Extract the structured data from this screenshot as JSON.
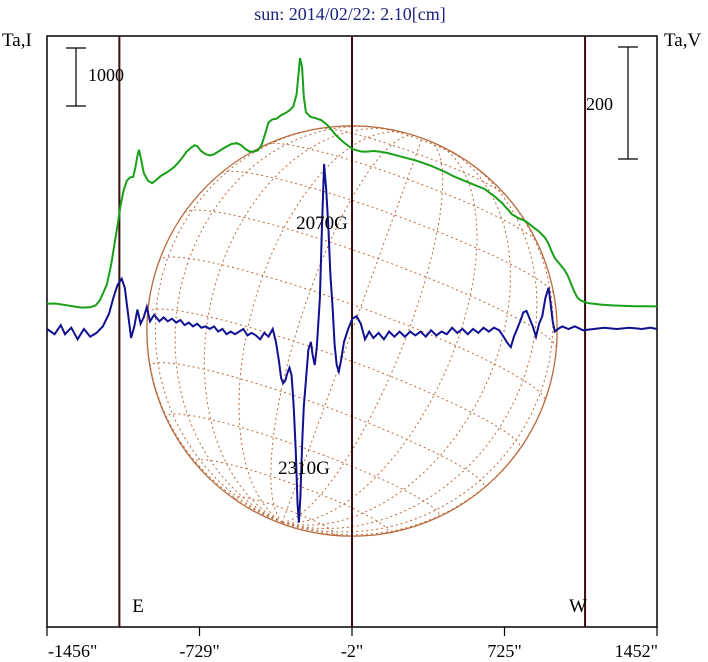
{
  "chart_data": {
    "type": "line",
    "title": "sun: 2014/02/22: 2.10[cm]",
    "ylabel_left": "Ta,I",
    "ylabel_right": "Ta,V",
    "scale_left_label": "1000",
    "scale_right_label": "200",
    "x_ticks": [
      "-1456\"",
      "-729\"",
      "-2\"",
      "725\"",
      "1452\""
    ],
    "x_tick_values": [
      -1456,
      -729,
      -2,
      725,
      1452
    ],
    "xlim": [
      -1456,
      1452
    ],
    "limb_labels": {
      "east": "E",
      "west": "W"
    },
    "vertical_markers": [
      -1111,
      -2,
      1109
    ],
    "annotations": [
      {
        "text": "2070G",
        "x": -2,
        "series": "V"
      },
      {
        "text": "2310G",
        "x": -222,
        "series": "V"
      }
    ],
    "series": [
      {
        "id": "I",
        "color": "#18a018",
        "points": [
          [
            -1456,
            1.95
          ],
          [
            -1415,
            1.98
          ],
          [
            -1380,
            1.88
          ],
          [
            -1330,
            1.75
          ],
          [
            -1290,
            1.66
          ],
          [
            -1250,
            1.68
          ],
          [
            -1225,
            1.82
          ],
          [
            -1205,
            2.2
          ],
          [
            -1185,
            2.9
          ],
          [
            -1170,
            3.5
          ],
          [
            -1150,
            5.0
          ],
          [
            -1135,
            6.5
          ],
          [
            -1120,
            8.0
          ],
          [
            -1105,
            9.6
          ],
          [
            -1090,
            10.8
          ],
          [
            -1075,
            11.5
          ],
          [
            -1060,
            11.75
          ],
          [
            -1045,
            11.8
          ],
          [
            -1035,
            12.5
          ],
          [
            -1025,
            13.4
          ],
          [
            -1018,
            13.9
          ],
          [
            -1008,
            13.2
          ],
          [
            -995,
            12.1
          ],
          [
            -975,
            11.5
          ],
          [
            -955,
            11.3
          ],
          [
            -935,
            11.55
          ],
          [
            -915,
            11.85
          ],
          [
            -895,
            12.05
          ],
          [
            -875,
            12.25
          ],
          [
            -850,
            12.55
          ],
          [
            -830,
            12.9
          ],
          [
            -810,
            13.3
          ],
          [
            -790,
            13.75
          ],
          [
            -770,
            14.05
          ],
          [
            -752,
            14.25
          ],
          [
            -738,
            14.15
          ],
          [
            -722,
            13.8
          ],
          [
            -700,
            13.55
          ],
          [
            -678,
            13.45
          ],
          [
            -660,
            13.55
          ],
          [
            -640,
            13.75
          ],
          [
            -620,
            13.95
          ],
          [
            -600,
            14.15
          ],
          [
            -575,
            14.35
          ],
          [
            -550,
            14.4
          ],
          [
            -530,
            14.25
          ],
          [
            -510,
            13.95
          ],
          [
            -490,
            13.75
          ],
          [
            -470,
            13.75
          ],
          [
            -450,
            13.85
          ],
          [
            -432,
            14.3
          ],
          [
            -415,
            15.2
          ],
          [
            -400,
            16.0
          ],
          [
            -382,
            16.25
          ],
          [
            -362,
            16.3
          ],
          [
            -342,
            16.55
          ],
          [
            -318,
            16.75
          ],
          [
            -300,
            16.95
          ],
          [
            -282,
            17.25
          ],
          [
            -266,
            18.2
          ],
          [
            -258,
            19.6
          ],
          [
            -250,
            21.0
          ],
          [
            -240,
            20.3
          ],
          [
            -232,
            18.0
          ],
          [
            -222,
            16.8
          ],
          [
            -200,
            16.45
          ],
          [
            -178,
            16.35
          ],
          [
            -150,
            16.2
          ],
          [
            -122,
            15.85
          ],
          [
            -100,
            15.45
          ],
          [
            -80,
            15.05
          ],
          [
            -60,
            14.75
          ],
          [
            -40,
            14.45
          ],
          [
            -20,
            14.2
          ],
          [
            0,
            13.95
          ],
          [
            20,
            13.85
          ],
          [
            45,
            13.75
          ],
          [
            70,
            13.75
          ],
          [
            100,
            13.8
          ],
          [
            130,
            13.75
          ],
          [
            165,
            13.65
          ],
          [
            200,
            13.5
          ],
          [
            235,
            13.35
          ],
          [
            270,
            13.2
          ],
          [
            305,
            13.05
          ],
          [
            340,
            12.85
          ],
          [
            375,
            12.65
          ],
          [
            410,
            12.4
          ],
          [
            445,
            12.15
          ],
          [
            480,
            11.85
          ],
          [
            510,
            11.65
          ],
          [
            540,
            11.45
          ],
          [
            570,
            11.25
          ],
          [
            600,
            11.05
          ],
          [
            630,
            10.85
          ],
          [
            655,
            10.55
          ],
          [
            680,
            10.25
          ],
          [
            700,
            9.95
          ],
          [
            715,
            9.75
          ],
          [
            730,
            9.45
          ],
          [
            745,
            9.2
          ],
          [
            760,
            8.9
          ],
          [
            775,
            8.75
          ],
          [
            790,
            8.6
          ],
          [
            805,
            8.5
          ],
          [
            820,
            8.4
          ],
          [
            835,
            8.25
          ],
          [
            850,
            8.05
          ],
          [
            870,
            7.8
          ],
          [
            890,
            7.55
          ],
          [
            905,
            7.3
          ],
          [
            920,
            7.05
          ],
          [
            935,
            6.6
          ],
          [
            950,
            6.0
          ],
          [
            965,
            5.5
          ],
          [
            980,
            5.2
          ],
          [
            995,
            4.9
          ],
          [
            1010,
            4.6
          ],
          [
            1025,
            4.2
          ],
          [
            1040,
            3.6
          ],
          [
            1055,
            3.0
          ],
          [
            1070,
            2.5
          ],
          [
            1085,
            2.25
          ],
          [
            1105,
            2.1
          ],
          [
            1125,
            2.0
          ],
          [
            1150,
            1.95
          ],
          [
            1180,
            1.9
          ],
          [
            1210,
            1.86
          ],
          [
            1250,
            1.82
          ],
          [
            1300,
            1.79
          ],
          [
            1350,
            1.77
          ],
          [
            1400,
            1.76
          ],
          [
            1452,
            1.75
          ]
        ]
      },
      {
        "id": "V",
        "color": "#101090",
        "points": [
          [
            -1456,
            0.0
          ],
          [
            -1420,
            -0.4
          ],
          [
            -1390,
            0.3
          ],
          [
            -1370,
            -0.4
          ],
          [
            -1340,
            0.1
          ],
          [
            -1310,
            -0.8
          ],
          [
            -1280,
            0.0
          ],
          [
            -1250,
            -0.6
          ],
          [
            -1220,
            -0.3
          ],
          [
            -1190,
            0.2
          ],
          [
            -1160,
            1.2
          ],
          [
            -1140,
            2.4
          ],
          [
            -1120,
            3.4
          ],
          [
            -1100,
            3.9
          ],
          [
            -1085,
            3.2
          ],
          [
            -1070,
            1.2
          ],
          [
            -1055,
            -0.7
          ],
          [
            -1040,
            0.2
          ],
          [
            -1025,
            1.5
          ],
          [
            -1010,
            0.4
          ],
          [
            -995,
            0.9
          ],
          [
            -980,
            1.7
          ],
          [
            -965,
            0.6
          ],
          [
            -945,
            1.1
          ],
          [
            -920,
            0.6
          ],
          [
            -900,
            0.9
          ],
          [
            -880,
            0.6
          ],
          [
            -860,
            0.8
          ],
          [
            -840,
            0.5
          ],
          [
            -820,
            0.7
          ],
          [
            -800,
            0.3
          ],
          [
            -780,
            0.5
          ],
          [
            -760,
            0.2
          ],
          [
            -740,
            0.4
          ],
          [
            -720,
            0.1
          ],
          [
            -700,
            0.2
          ],
          [
            -680,
            0.0
          ],
          [
            -660,
            0.2
          ],
          [
            -640,
            -0.2
          ],
          [
            -620,
            0.0
          ],
          [
            -600,
            -0.4
          ],
          [
            -580,
            -0.2
          ],
          [
            -560,
            -0.4
          ],
          [
            -540,
            -0.2
          ],
          [
            -520,
            0.0
          ],
          [
            -500,
            -0.5
          ],
          [
            -480,
            -0.3
          ],
          [
            -460,
            -0.5
          ],
          [
            -440,
            -0.8
          ],
          [
            -420,
            -0.3
          ],
          [
            -400,
            -0.6
          ],
          [
            -380,
            0.0
          ],
          [
            -365,
            -1.0
          ],
          [
            -350,
            -2.5
          ],
          [
            -340,
            -3.8
          ],
          [
            -330,
            -4.2
          ],
          [
            -320,
            -4.0
          ],
          [
            -310,
            -3.4
          ],
          [
            -300,
            -3.0
          ],
          [
            -290,
            -3.6
          ],
          [
            -280,
            -6.0
          ],
          [
            -270,
            -9.5
          ],
          [
            -262,
            -13.5
          ],
          [
            -255,
            -15.0
          ],
          [
            -248,
            -13.0
          ],
          [
            -240,
            -9.0
          ],
          [
            -232,
            -6.0
          ],
          [
            -222,
            -4.0
          ],
          [
            -210,
            -1.6
          ],
          [
            -198,
            -1.0
          ],
          [
            -190,
            -2.0
          ],
          [
            -180,
            -2.8
          ],
          [
            -170,
            -1.4
          ],
          [
            -155,
            2.4
          ],
          [
            -145,
            8.0
          ],
          [
            -135,
            12.8
          ],
          [
            -125,
            10.8
          ],
          [
            -115,
            8.0
          ],
          [
            -105,
            4.2
          ],
          [
            -95,
            1.8
          ],
          [
            -85,
            -1.2
          ],
          [
            -75,
            -2.8
          ],
          [
            -65,
            -3.3
          ],
          [
            -55,
            -2.5
          ],
          [
            -40,
            -1.0
          ],
          [
            -20,
            0.0
          ],
          [
            0,
            0.8
          ],
          [
            20,
            1.0
          ],
          [
            40,
            0.4
          ],
          [
            60,
            -0.8
          ],
          [
            80,
            -0.2
          ],
          [
            100,
            -0.7
          ],
          [
            125,
            -0.3
          ],
          [
            150,
            -0.8
          ],
          [
            175,
            -0.2
          ],
          [
            200,
            -0.6
          ],
          [
            225,
            -0.2
          ],
          [
            250,
            -0.6
          ],
          [
            275,
            -0.2
          ],
          [
            300,
            -0.5
          ],
          [
            325,
            -0.2
          ],
          [
            350,
            -0.6
          ],
          [
            375,
            -0.1
          ],
          [
            400,
            -0.5
          ],
          [
            425,
            -0.2
          ],
          [
            450,
            -0.4
          ],
          [
            475,
            0.1
          ],
          [
            500,
            -0.3
          ],
          [
            525,
            0.0
          ],
          [
            550,
            -0.4
          ],
          [
            575,
            0.0
          ],
          [
            600,
            -0.3
          ],
          [
            625,
            0.1
          ],
          [
            650,
            -0.2
          ],
          [
            675,
            0.1
          ],
          [
            700,
            -0.1
          ],
          [
            720,
            -0.6
          ],
          [
            740,
            -1.1
          ],
          [
            755,
            -1.4
          ],
          [
            770,
            -0.6
          ],
          [
            785,
            0.0
          ],
          [
            800,
            0.6
          ],
          [
            815,
            1.3
          ],
          [
            830,
            1.4
          ],
          [
            845,
            0.8
          ],
          [
            860,
            0.2
          ],
          [
            875,
            -0.6
          ],
          [
            890,
            0.4
          ],
          [
            905,
            1.0
          ],
          [
            920,
            2.4
          ],
          [
            935,
            3.2
          ],
          [
            945,
            2.0
          ],
          [
            955,
            0.6
          ],
          [
            965,
            -0.2
          ],
          [
            980,
            0.0
          ],
          [
            1000,
            0.2
          ],
          [
            1030,
            0.0
          ],
          [
            1060,
            0.2
          ],
          [
            1100,
            -0.1
          ],
          [
            1150,
            0.0
          ],
          [
            1200,
            0.1
          ],
          [
            1260,
            0.0
          ],
          [
            1320,
            0.1
          ],
          [
            1380,
            0.0
          ],
          [
            1420,
            0.1
          ],
          [
            1452,
            0.0
          ]
        ]
      }
    ],
    "limb_circle": {
      "center_x": -2,
      "radius_arcsec": 978
    }
  }
}
